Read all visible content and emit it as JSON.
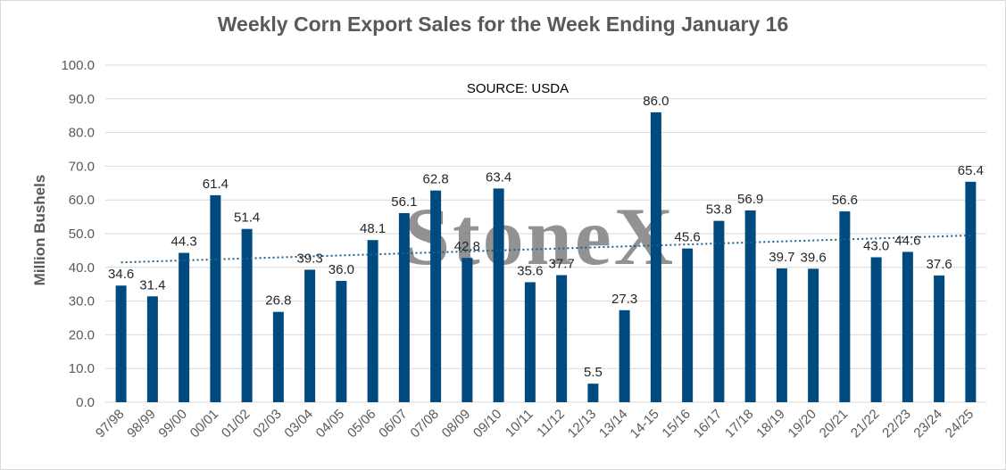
{
  "chart_data": {
    "type": "bar",
    "title": "Weekly Corn Export Sales for the Week Ending January 16",
    "ylabel": "Million Bushels",
    "xlabel": "",
    "annotation": "SOURCE: USDA",
    "watermark": "StoneX",
    "ylim": [
      0,
      100
    ],
    "yticks": [
      "0.0",
      "10.0",
      "20.0",
      "30.0",
      "40.0",
      "50.0",
      "60.0",
      "70.0",
      "80.0",
      "90.0",
      "100.0"
    ],
    "grid": true,
    "trendline": "linear dotted",
    "bar_color": "#004a80",
    "trend_color": "#1f5f8b",
    "categories": [
      "97/98",
      "98/99",
      "99/00",
      "00/01",
      "01/02",
      "02/03",
      "03/04",
      "04/05",
      "05/06",
      "06/07",
      "07/08",
      "08/09",
      "09/10",
      "10/11",
      "11/12",
      "12/13",
      "13/14",
      "14-15",
      "15/16",
      "16/17",
      "17/18",
      "18/19",
      "19/20",
      "20/21",
      "21/22",
      "22/23",
      "23/24",
      "24/25"
    ],
    "values": [
      34.6,
      31.4,
      44.3,
      61.4,
      51.4,
      26.8,
      39.3,
      36.0,
      48.1,
      56.1,
      62.8,
      42.8,
      63.4,
      35.6,
      37.7,
      5.5,
      27.3,
      86.0,
      45.6,
      53.8,
      56.9,
      39.7,
      39.6,
      56.6,
      43.0,
      44.6,
      37.6,
      65.4
    ],
    "data_labels": [
      "34.6",
      "31.4",
      "44.3",
      "61.4",
      "51.4",
      "26.8",
      "39.3",
      "36.0",
      "48.1",
      "56.1",
      "62.8",
      "42.8",
      "63.4",
      "35.6",
      "37.7",
      "5.5",
      "27.3",
      "86.0",
      "45.6",
      "53.8",
      "56.9",
      "39.7",
      "39.6",
      "56.6",
      "43.0",
      "44.6",
      "37.6",
      "65.4"
    ]
  }
}
